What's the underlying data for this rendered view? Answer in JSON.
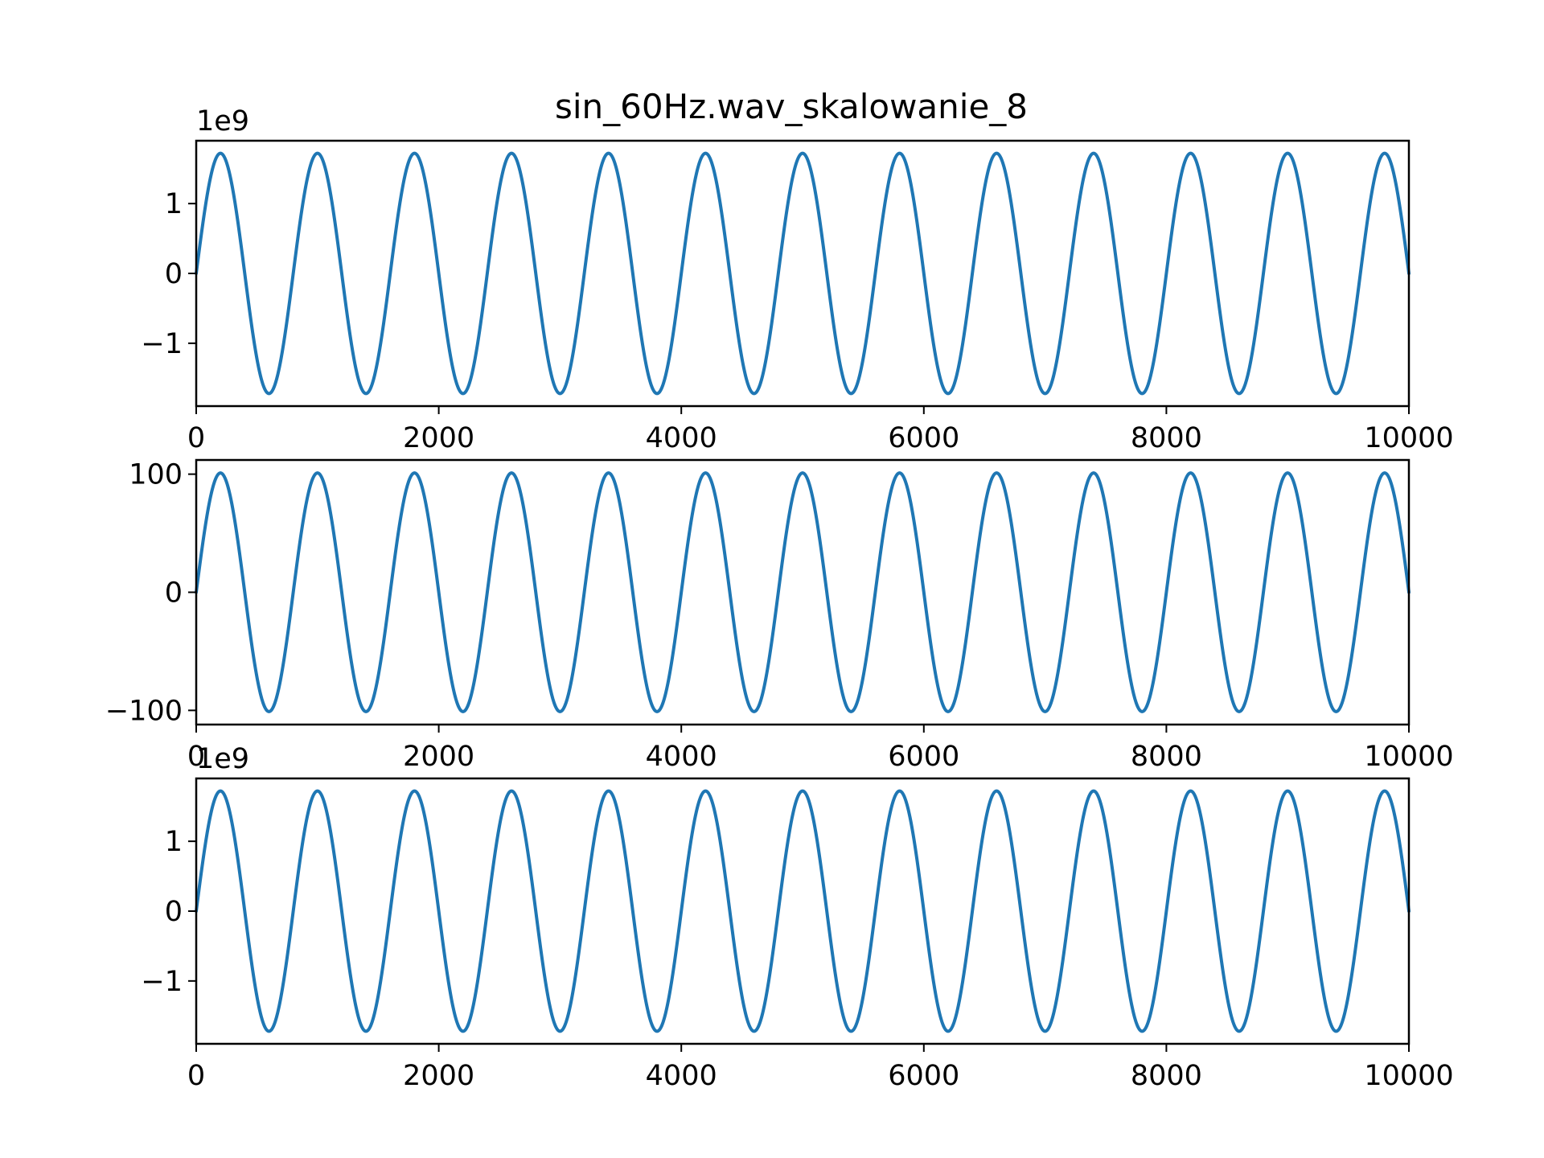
{
  "figure": {
    "title": "sin_60Hz.wav_skalowanie_8"
  },
  "chart_data": [
    {
      "type": "line",
      "title": "sin_60Hz.wav_skalowanie_8",
      "xlabel": "",
      "ylabel": "",
      "offset_text": "1e9",
      "xlim": [
        0,
        10000
      ],
      "ylim": [
        -1.9,
        1.9
      ],
      "xticks": [
        0,
        2000,
        4000,
        6000,
        8000,
        10000
      ],
      "xtick_labels": [
        "0",
        "2000",
        "4000",
        "6000",
        "8000",
        "10000"
      ],
      "yticks": [
        -1,
        0,
        1
      ],
      "ytick_labels": [
        "−1",
        "0",
        "1"
      ],
      "grid": false,
      "color": "#1f77b4",
      "series": [
        {
          "function": "sine",
          "amplitude": 1.72,
          "period": 800,
          "x_start": 0,
          "x_end": 10000
        }
      ]
    },
    {
      "type": "line",
      "title": "",
      "xlabel": "",
      "ylabel": "",
      "offset_text": "",
      "xlim": [
        0,
        10000
      ],
      "ylim": [
        -112,
        112
      ],
      "xticks": [
        0,
        2000,
        4000,
        6000,
        8000,
        10000
      ],
      "xtick_labels": [
        "0",
        "2000",
        "4000",
        "6000",
        "8000",
        "10000"
      ],
      "yticks": [
        -100,
        0,
        100
      ],
      "ytick_labels": [
        "−100",
        "0",
        "100"
      ],
      "grid": false,
      "color": "#1f77b4",
      "series": [
        {
          "function": "sine",
          "amplitude": 101,
          "period": 800,
          "x_start": 0,
          "x_end": 10000
        }
      ]
    },
    {
      "type": "line",
      "title": "",
      "xlabel": "",
      "ylabel": "",
      "offset_text": "1e9",
      "xlim": [
        0,
        10000
      ],
      "ylim": [
        -1.9,
        1.9
      ],
      "xticks": [
        0,
        2000,
        4000,
        6000,
        8000,
        10000
      ],
      "xtick_labels": [
        "0",
        "2000",
        "4000",
        "6000",
        "8000",
        "10000"
      ],
      "yticks": [
        -1,
        0,
        1
      ],
      "ytick_labels": [
        "−1",
        "0",
        "1"
      ],
      "grid": false,
      "color": "#1f77b4",
      "series": [
        {
          "function": "sine",
          "amplitude": 1.72,
          "period": 800,
          "x_start": 0,
          "x_end": 10000
        }
      ]
    }
  ]
}
